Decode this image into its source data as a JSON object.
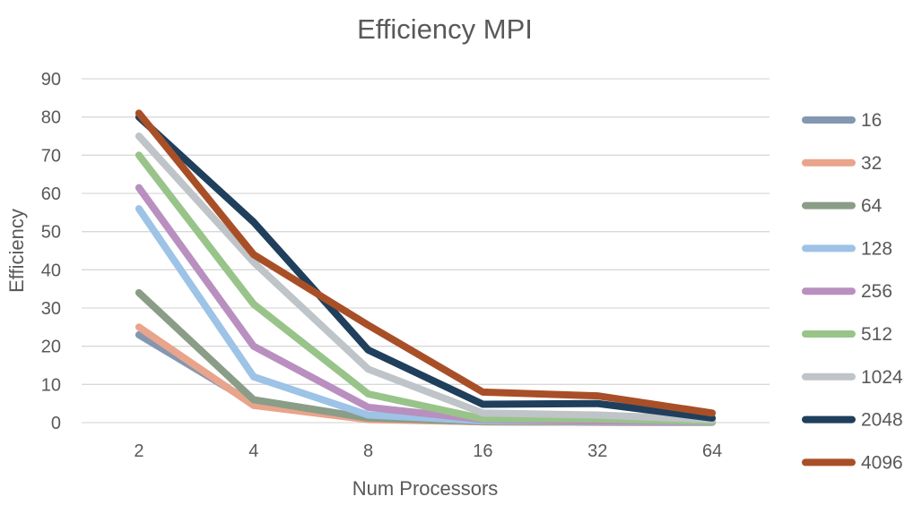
{
  "chart_data": {
    "type": "line",
    "title": "Efficiency MPI",
    "xlabel": "Num Processors",
    "ylabel": "Efficiency",
    "categories": [
      "2",
      "4",
      "8",
      "16",
      "32",
      "64"
    ],
    "ylim": [
      0,
      90
    ],
    "yticks": [
      0,
      10,
      20,
      30,
      40,
      50,
      60,
      70,
      80,
      90
    ],
    "grid": true,
    "legend_position": "right",
    "series": [
      {
        "name": "16",
        "color": "#8497b0",
        "values": [
          23,
          5,
          1,
          0.2,
          0.1,
          0.05
        ]
      },
      {
        "name": "32",
        "color": "#e9a48c",
        "values": [
          25,
          4.5,
          0.8,
          0.2,
          0.1,
          0.05
        ]
      },
      {
        "name": "64",
        "color": "#8a9d86",
        "values": [
          34,
          6,
          1.2,
          0.3,
          0.2,
          0.1
        ]
      },
      {
        "name": "128",
        "color": "#9dc3e6",
        "values": [
          56,
          12,
          2,
          0.5,
          0.3,
          0.1
        ]
      },
      {
        "name": "256",
        "color": "#b98fc0",
        "values": [
          61.5,
          20,
          4,
          0.8,
          0.4,
          0.2
        ]
      },
      {
        "name": "512",
        "color": "#98c48a",
        "values": [
          70,
          31,
          7.5,
          1,
          1,
          0.3
        ]
      },
      {
        "name": "1024",
        "color": "#bfc4c8",
        "values": [
          75,
          42,
          14,
          2.5,
          2,
          0.8
        ]
      },
      {
        "name": "2048",
        "color": "#1f3f5c",
        "values": [
          80,
          52.5,
          19,
          4.8,
          5,
          1.2
        ]
      },
      {
        "name": "4096",
        "color": "#a94f28",
        "values": [
          81,
          44,
          25.5,
          8,
          7,
          2.5
        ]
      }
    ]
  }
}
